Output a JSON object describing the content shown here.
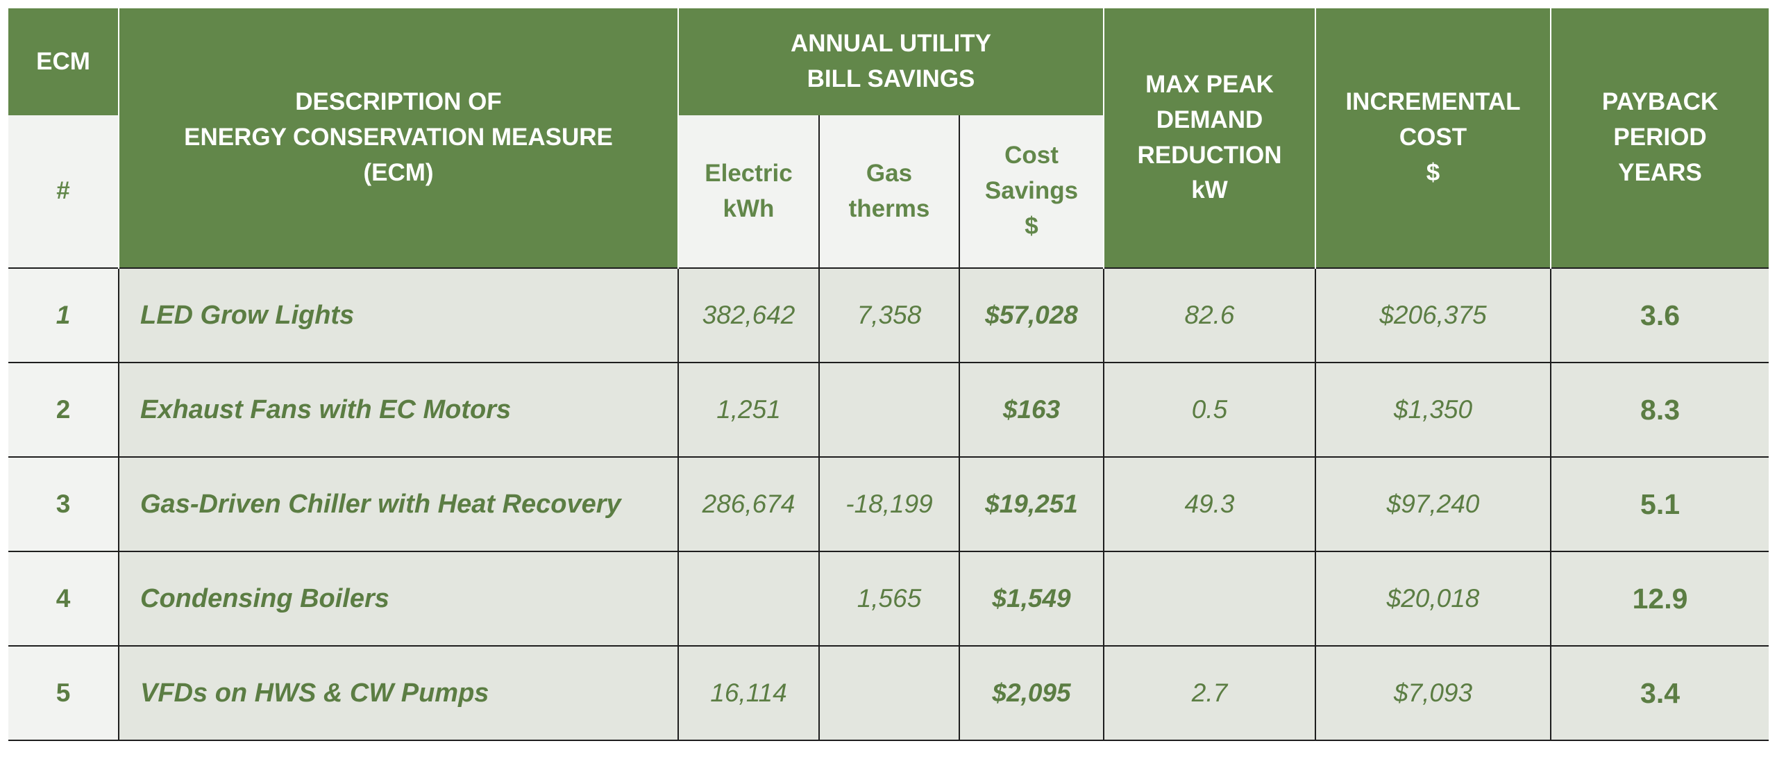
{
  "headers": {
    "ecm": "ECM",
    "num": "#",
    "description": [
      "DESCRIPTION OF",
      "ENERGY CONSERVATION MEASURE",
      "(ECM)"
    ],
    "annual": [
      "ANNUAL UTILITY",
      "BILL SAVINGS"
    ],
    "electric": [
      "Electric",
      "kWh"
    ],
    "gas": [
      "Gas",
      "therms"
    ],
    "cost_savings": [
      "Cost",
      "Savings",
      "$"
    ],
    "peak": [
      "MAX PEAK",
      "DEMAND",
      "REDUCTION",
      "kW"
    ],
    "incremental": [
      "INCREMENTAL",
      "COST",
      "$"
    ],
    "payback": [
      "PAYBACK",
      "PERIOD",
      "YEARS"
    ]
  },
  "rows": [
    {
      "num": "1",
      "description": "LED Grow Lights",
      "electric": "382,642",
      "gas": "7,358",
      "cost_savings": "$57,028",
      "peak": "82.6",
      "incremental": "$206,375",
      "payback": "3.6"
    },
    {
      "num": "2",
      "description": "Exhaust Fans with EC Motors",
      "electric": "1,251",
      "gas": "",
      "cost_savings": "$163",
      "peak": "0.5",
      "incremental": "$1,350",
      "payback": "8.3"
    },
    {
      "num": "3",
      "description": "Gas-Driven Chiller with Heat Recovery",
      "electric": "286,674",
      "gas": "-18,199",
      "cost_savings": "$19,251",
      "peak": "49.3",
      "incremental": "$97,240",
      "payback": "5.1"
    },
    {
      "num": "4",
      "description": "Condensing Boilers",
      "electric": "",
      "gas": "1,565",
      "cost_savings": "$1,549",
      "peak": "",
      "incremental": "$20,018",
      "payback": "12.9"
    },
    {
      "num": "5",
      "description": "VFDs on HWS & CW Pumps",
      "electric": "16,114",
      "gas": "",
      "cost_savings": "$2,095",
      "peak": "2.7",
      "incremental": "$7,093",
      "payback": "3.4"
    }
  ]
}
